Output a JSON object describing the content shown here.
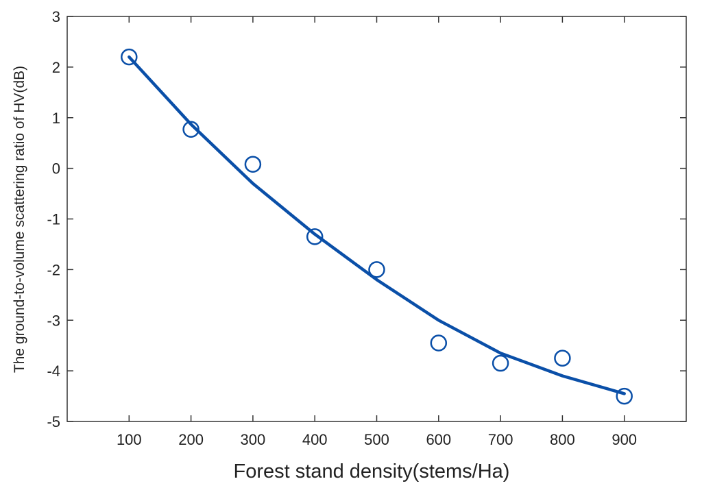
{
  "chart_data": {
    "type": "scatter",
    "title": "",
    "xlabel": "Forest stand density(stems/Ha)",
    "ylabel": "The ground-to-volume scattering ratio of HV(dB)",
    "xlim": [
      0,
      1000
    ],
    "ylim": [
      -5,
      3
    ],
    "xticks": [
      100,
      200,
      300,
      400,
      500,
      600,
      700,
      800,
      900
    ],
    "yticks": [
      -5,
      -4,
      -3,
      -2,
      -1,
      0,
      1,
      2,
      3
    ],
    "grid": false,
    "legend": "none",
    "series": [
      {
        "kind": "points",
        "marker": "open-circle",
        "color": "#0a4fa8",
        "x": [
          100,
          200,
          300,
          400,
          500,
          600,
          700,
          800,
          900
        ],
        "y": [
          2.2,
          0.77,
          0.08,
          -1.35,
          -2.0,
          -3.45,
          -3.85,
          -3.75,
          -4.5
        ]
      },
      {
        "kind": "fit-line",
        "color": "#0a4fa8",
        "x": [
          100,
          200,
          300,
          400,
          500,
          600,
          700,
          800,
          900
        ],
        "y": [
          2.2,
          0.87,
          -0.3,
          -1.3,
          -2.2,
          -3.0,
          -3.65,
          -4.1,
          -4.45
        ]
      }
    ]
  }
}
